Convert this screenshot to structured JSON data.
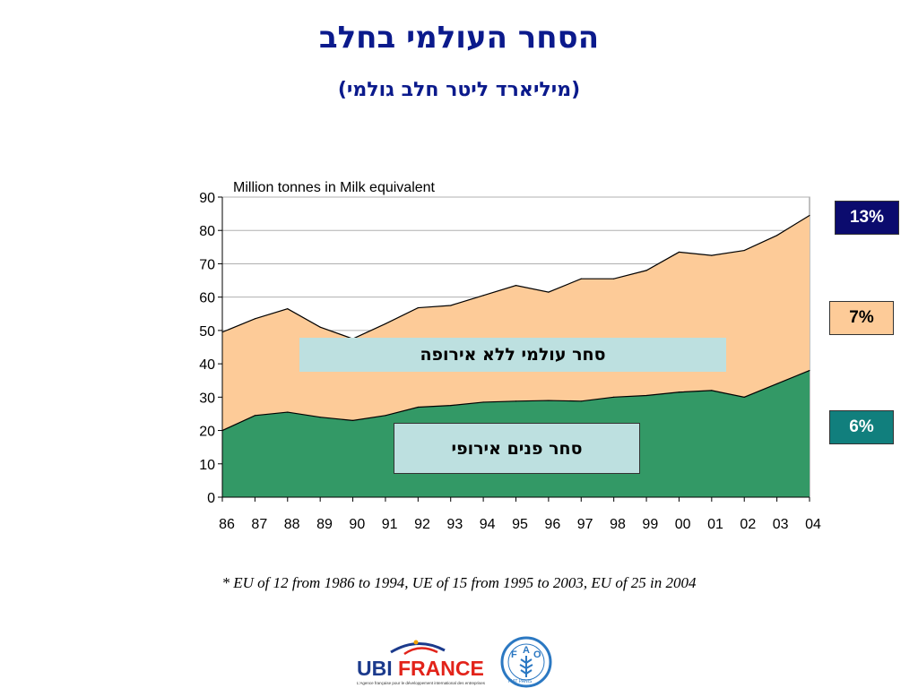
{
  "title": "הסחר העולמי בחלב",
  "subtitle": "(מיליארד ליטר חלב גולמי)",
  "chart_data": {
    "type": "area",
    "ylabel": "Million tonnes in Milk equivalent",
    "ylim": [
      0,
      90
    ],
    "yticks": [
      0,
      10,
      20,
      30,
      40,
      50,
      60,
      70,
      80,
      90
    ],
    "categories": [
      "86",
      "87",
      "88",
      "89",
      "90",
      "91",
      "92",
      "93",
      "94",
      "95",
      "96",
      "97",
      "98",
      "99",
      "00",
      "01",
      "02",
      "03",
      "04"
    ],
    "grid": true,
    "series": [
      {
        "name": "סחר פנים אירופי",
        "color": "#339966",
        "values": [
          20,
          24.5,
          25.5,
          24,
          23,
          24.5,
          27,
          27.5,
          28.5,
          28.8,
          29,
          28.8,
          30,
          30.5,
          31.5,
          32,
          30,
          34,
          38
        ]
      },
      {
        "name": "סחר עולמי ללא אירופה",
        "color": "#fdcb98",
        "values": [
          49.5,
          53.5,
          56.5,
          51,
          47.5,
          52,
          56.8,
          57.5,
          60.5,
          63.5,
          61.5,
          65.5,
          65.5,
          68,
          73.5,
          72.5,
          74,
          78.5,
          84.5
        ]
      }
    ]
  },
  "badges": {
    "total": "13%",
    "world": "7%",
    "eu": "6%"
  },
  "footnote": "* EU of 12 from 1986 to 1994, UE of 15 from 1995 to 2003, EU of 25 in 2004",
  "logos": {
    "ubifrance_prefix": "UBI",
    "ubifrance_suffix": "FRANCE",
    "ubifrance_tagline": "L'Agence française pour le développement international des entreprises",
    "fao_letters": [
      "F",
      "A",
      "O"
    ],
    "fao_motto": "FIAT PANIS"
  }
}
